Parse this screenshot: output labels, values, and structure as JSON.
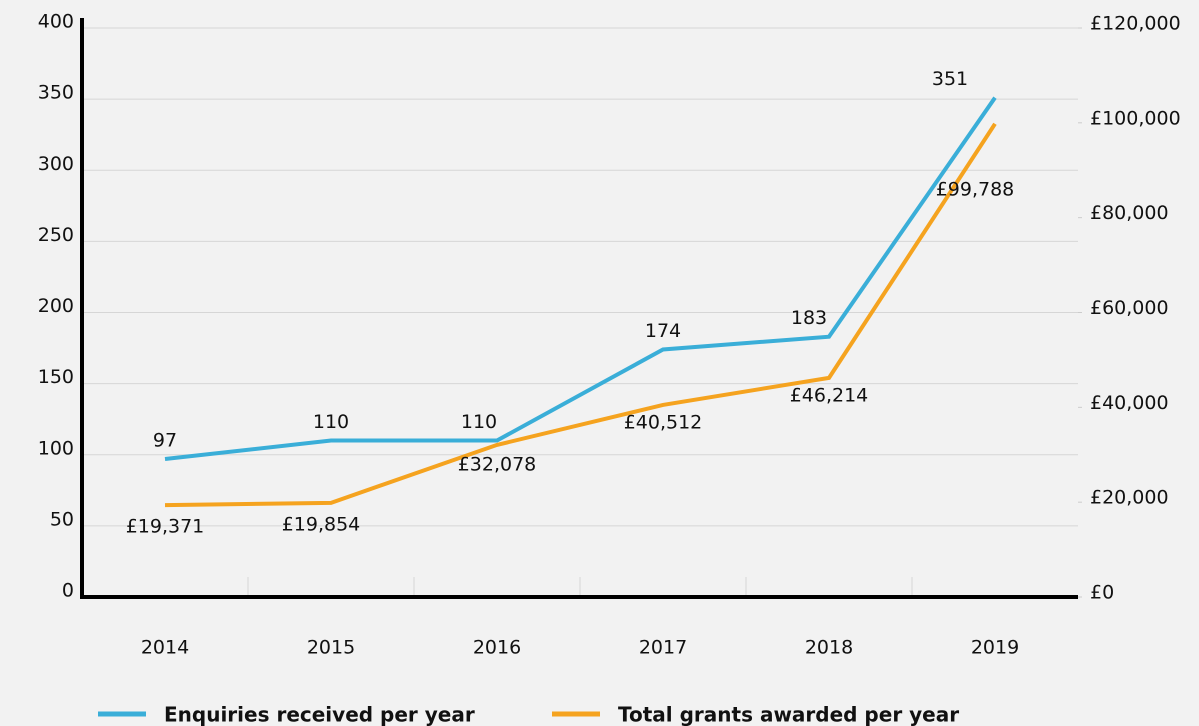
{
  "chart_data": {
    "type": "line",
    "categories": [
      "2014",
      "2015",
      "2016",
      "2017",
      "2018",
      "2019"
    ],
    "series": [
      {
        "name": "Enquiries received per year",
        "color": "#3aaed8",
        "values": [
          97,
          110,
          110,
          174,
          183,
          351
        ],
        "value_labels": [
          "97",
          "110",
          "110",
          "174",
          "183",
          "351"
        ]
      },
      {
        "name": "Total grants awarded per year",
        "color": "#f5a31f",
        "axis": "y2",
        "values": [
          19371,
          19854,
          32078,
          40512,
          46214,
          99788
        ],
        "value_labels": [
          "£19,371",
          "£19,854",
          "£32,078",
          "£40,512",
          "£46,214",
          "£99,788"
        ]
      }
    ],
    "ylim": [
      0,
      400
    ],
    "yticks": [
      0,
      50,
      100,
      150,
      200,
      250,
      300,
      350,
      400
    ],
    "y2lim": [
      0,
      120000
    ],
    "y2ticks": [
      {
        "value": 0,
        "label": "£0"
      },
      {
        "value": 20000,
        "label": "£20,000"
      },
      {
        "value": 40000,
        "label": "£40,000"
      },
      {
        "value": 60000,
        "label": "£60,000"
      },
      {
        "value": 80000,
        "label": "£80,000"
      },
      {
        "value": 100000,
        "label": "£100,000"
      },
      {
        "value": 120000,
        "label": "£120,000"
      }
    ],
    "grid": true,
    "legend": "bottom"
  }
}
